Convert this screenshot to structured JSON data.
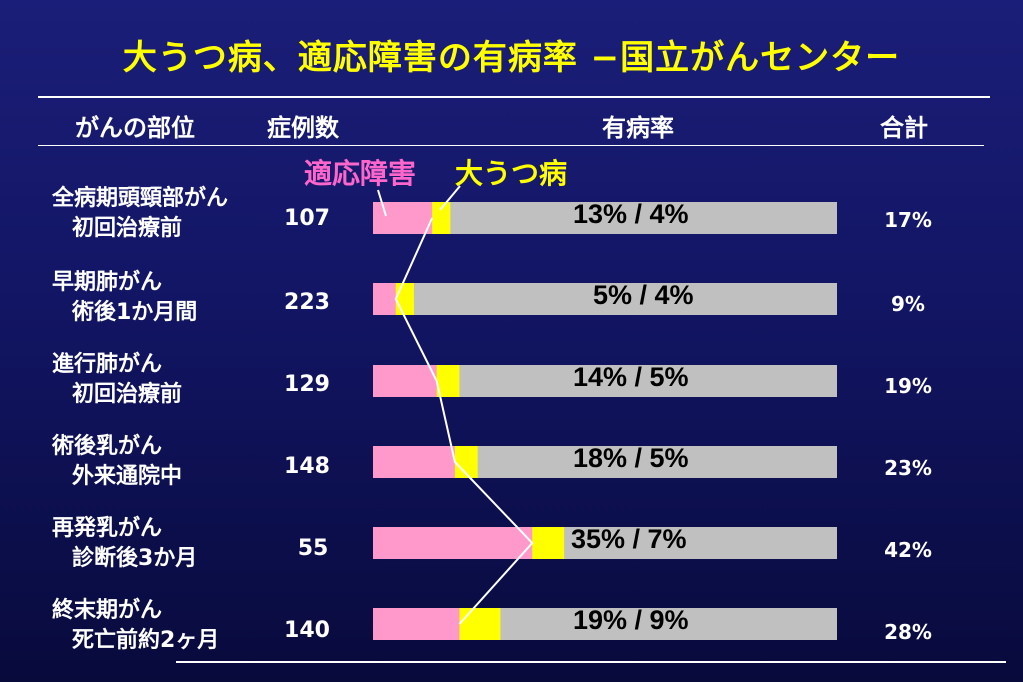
{
  "title": "大うつ病、適応障害の有病率 −国立がんセンター",
  "headers": {
    "site": "がんの部位",
    "cases": "症例数",
    "prevalence": "有病率",
    "total": "合計"
  },
  "legend": {
    "adjustment": "適応障害",
    "depression": "大うつ病"
  },
  "colors": {
    "adjustment": "#ff99cc",
    "depression": "#ffff00",
    "track": "#c0c0c0",
    "connector": "#ffffff"
  },
  "rows": [
    {
      "site1": "全病期頭頸部がん",
      "site2": "初回治療前",
      "n": "107",
      "label": "13% / 4%",
      "total": "17%"
    },
    {
      "site1": "早期肺がん",
      "site2": "術後1か月間",
      "n": "223",
      "label": "5% / 4%",
      "total": "9%"
    },
    {
      "site1": "進行肺がん",
      "site2": "初回治療前",
      "n": "129",
      "label": "14% / 5%",
      "total": "19%"
    },
    {
      "site1": "術後乳がん",
      "site2": "外来通院中",
      "n": "148",
      "label": "18% / 5%",
      "total": "23%"
    },
    {
      "site1": "再発乳がん",
      "site2": "診断後3か月",
      "n": "55",
      "label": "35% / 7%",
      "total": "42%"
    },
    {
      "site1": "終末期がん",
      "site2": "死亡前約2ヶ月",
      "n": "140",
      "label": "19% / 9%",
      "total": "28%"
    }
  ],
  "chart_data": {
    "type": "bar",
    "orientation": "horizontal",
    "stacked": true,
    "categories": [
      "全病期頭頸部がん 初回治療前",
      "早期肺がん 術後1か月間",
      "進行肺がん 初回治療前",
      "術後乳がん 外来通院中",
      "再発乳がん 診断後3か月",
      "終末期がん 死亡前約2ヶ月"
    ],
    "series": [
      {
        "name": "適応障害",
        "values": [
          13,
          5,
          14,
          18,
          35,
          19
        ]
      },
      {
        "name": "大うつ病",
        "values": [
          4,
          4,
          5,
          5,
          7,
          9
        ]
      }
    ],
    "xlim": [
      0,
      100
    ],
    "unit": "%"
  }
}
